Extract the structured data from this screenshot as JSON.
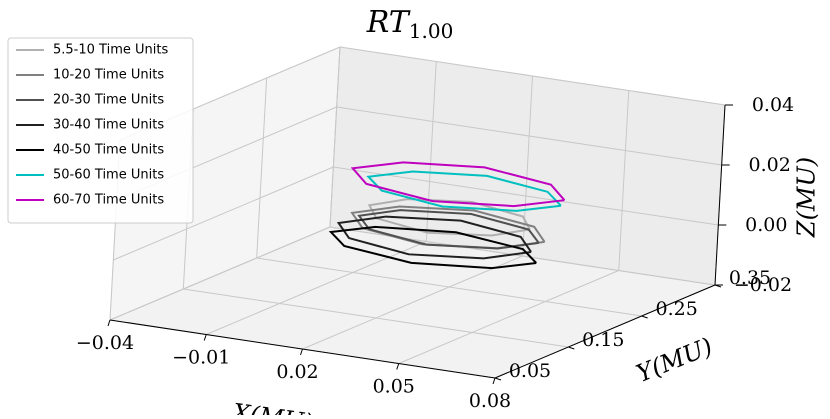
{
  "chart_data": {
    "type": "line3d",
    "title": "RT",
    "title_subscript": "1.00",
    "xlabel": "X(MU)",
    "ylabel": "Y(MU)",
    "zlabel": "Z(MU)",
    "xlim": [
      -0.04,
      0.08
    ],
    "ylim": [
      0.05,
      0.35
    ],
    "zlim": [
      -0.02,
      0.04
    ],
    "xticks": [
      {
        "value": -0.04,
        "label": "−0.04"
      },
      {
        "value": -0.01,
        "label": "−0.01"
      },
      0.02,
      0.05,
      0.08
    ],
    "yticks": [
      0.05,
      0.15,
      0.25,
      0.35
    ],
    "zticks": [
      {
        "value": -0.02,
        "label": "−0.02"
      },
      {
        "value": 0,
        "label": "0.00"
      },
      0.02,
      0.04
    ],
    "grid": true,
    "legend": "upper left",
    "series": [
      {
        "name": "5.5-10 Time Units",
        "color": "#b0b0b0",
        "x": [
          0.055,
          0.048,
          0.03,
          0.012,
          0.005,
          0.012,
          0.03,
          0.048,
          0.055
        ],
        "y": [
          0.2,
          0.221,
          0.23,
          0.221,
          0.2,
          0.179,
          0.17,
          0.179,
          0.2
        ],
        "z": [
          0.01,
          0.011,
          0.012,
          0.011,
          0.01,
          0.009,
          0.008,
          0.009,
          0.01
        ]
      },
      {
        "name": "10-20 Time Units",
        "color": "#808080",
        "x": [
          0.062,
          0.053,
          0.032,
          0.011,
          0.002,
          0.011,
          0.032,
          0.053,
          0.062
        ],
        "y": [
          0.19,
          0.215,
          0.225,
          0.215,
          0.19,
          0.165,
          0.155,
          0.165,
          0.19
        ],
        "z": [
          0.008,
          0.009,
          0.01,
          0.009,
          0.008,
          0.007,
          0.006,
          0.007,
          0.008
        ]
      },
      {
        "name": "20-30 Time Units",
        "color": "#505050",
        "x": [
          0.058,
          0.05,
          0.03,
          0.01,
          0.002,
          0.01,
          0.03,
          0.05,
          0.058
        ],
        "y": [
          0.2,
          0.221,
          0.23,
          0.221,
          0.2,
          0.179,
          0.17,
          0.179,
          0.2
        ],
        "z": [
          0.006,
          0.007,
          0.008,
          0.007,
          0.006,
          0.005,
          0.004,
          0.005,
          0.006
        ]
      },
      {
        "name": "30-40 Time Units",
        "color": "#202020",
        "x": [
          0.058,
          0.049,
          0.028,
          0.007,
          -0.002,
          0.007,
          0.028,
          0.049,
          0.058
        ],
        "y": [
          0.19,
          0.215,
          0.225,
          0.215,
          0.19,
          0.165,
          0.155,
          0.165,
          0.19
        ],
        "z": [
          0.004,
          0.005,
          0.006,
          0.005,
          0.004,
          0.003,
          0.002,
          0.003,
          0.004
        ]
      },
      {
        "name": "40-50 Time Units",
        "color": "#000000",
        "x": [
          0.062,
          0.053,
          0.03,
          0.007,
          -0.002,
          0.007,
          0.03,
          0.053,
          0.062
        ],
        "y": [
          0.18,
          0.201,
          0.21,
          0.201,
          0.18,
          0.159,
          0.15,
          0.159,
          0.18
        ],
        "z": [
          0.002,
          0.003,
          0.004,
          0.003,
          0.002,
          0.001,
          0,
          0.001,
          0.002
        ]
      },
      {
        "name": "50-60 Time Units",
        "color": "#00bfbf",
        "x": [
          0.062,
          0.053,
          0.032,
          0.011,
          0.002,
          0.011,
          0.032,
          0.053,
          0.062
        ],
        "y": [
          0.21,
          0.231,
          0.24,
          0.231,
          0.21,
          0.189,
          0.18,
          0.189,
          0.21
        ],
        "z": [
          0.018,
          0.019,
          0.02,
          0.019,
          0.018,
          0.017,
          0.016,
          0.017,
          0.018
        ]
      },
      {
        "name": "60-70 Time Units",
        "color": "#bf00bf",
        "x": [
          0.063,
          0.053,
          0.03,
          0.007,
          -0.003,
          0.007,
          0.03,
          0.053,
          0.063
        ],
        "y": [
          0.21,
          0.235,
          0.245,
          0.235,
          0.21,
          0.185,
          0.175,
          0.185,
          0.21
        ],
        "z": [
          0.02,
          0.021,
          0.022,
          0.021,
          0.02,
          0.019,
          0.018,
          0.019,
          0.02
        ]
      }
    ]
  }
}
